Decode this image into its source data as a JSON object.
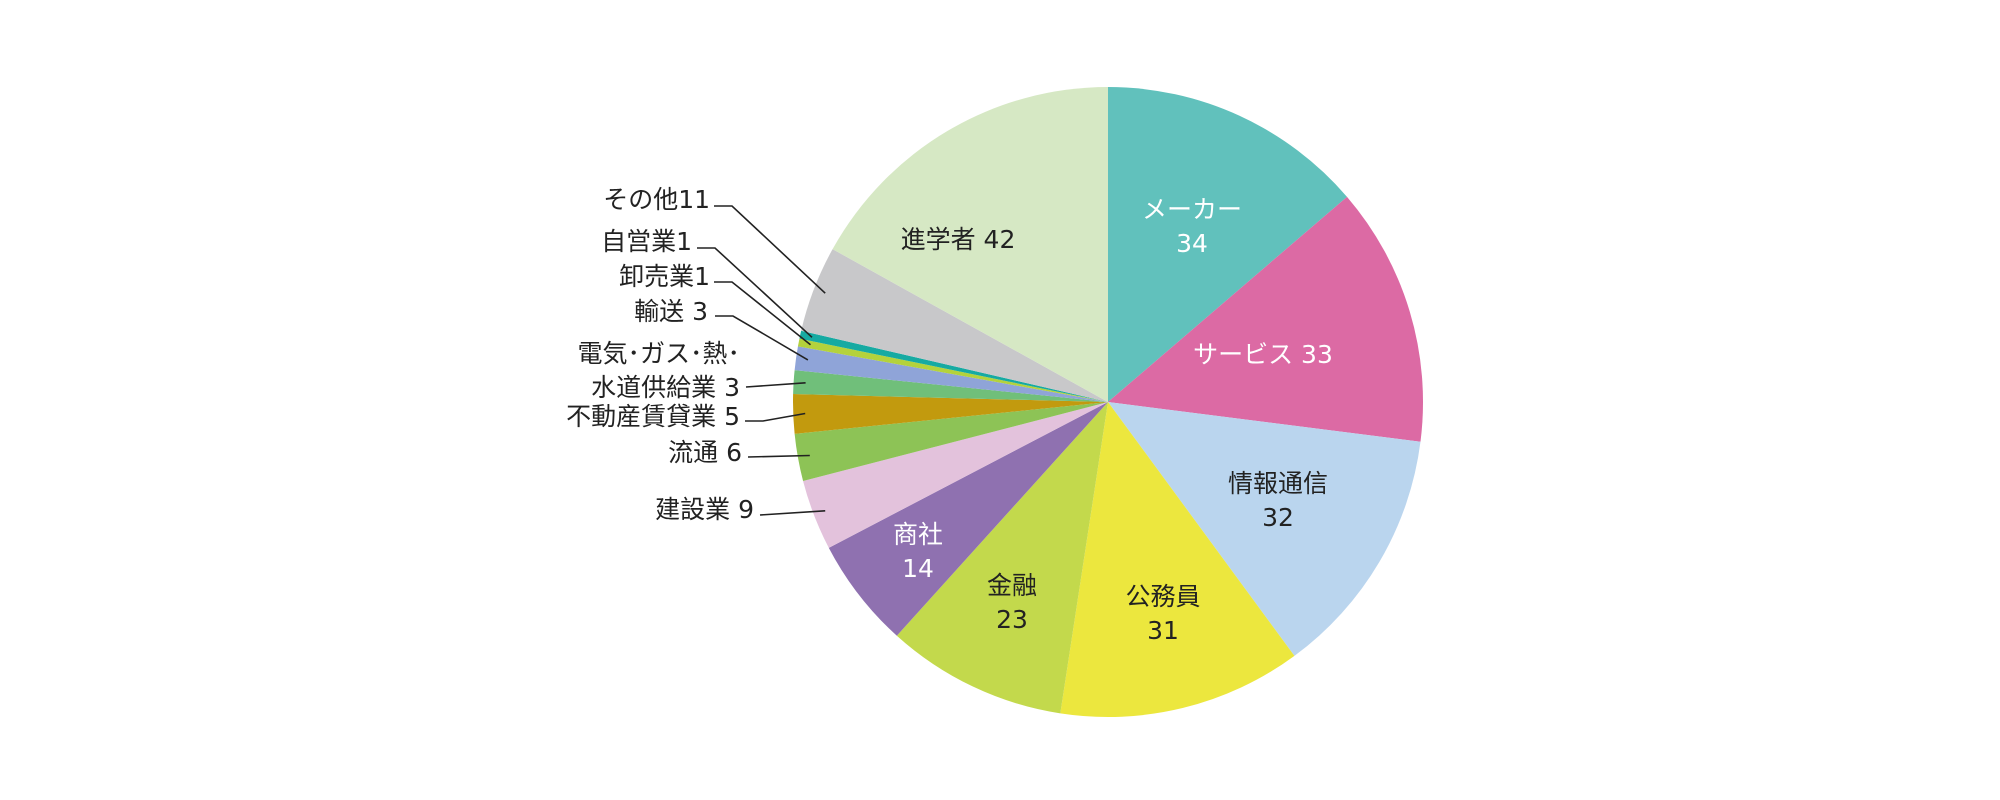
{
  "chart_data": {
    "type": "pie",
    "start": "12 o'clock",
    "direction": "clockwise",
    "slices": [
      {
        "label": "メーカー",
        "value": 34,
        "color": "#61c1bc",
        "label_style": "inside",
        "text_color": "#ffffff"
      },
      {
        "label": "サービス",
        "value": 33,
        "color": "#dc6aa4",
        "label_style": "inside",
        "text_color": "#ffffff"
      },
      {
        "label": "情報通信",
        "value": 32,
        "color": "#bad5ee",
        "label_style": "inside",
        "text_color": "#222222"
      },
      {
        "label": "公務員",
        "value": 31,
        "color": "#ece73e",
        "label_style": "inside",
        "text_color": "#222222"
      },
      {
        "label": "金融",
        "value": 23,
        "color": "#c3d94c",
        "label_style": "inside",
        "text_color": "#222222"
      },
      {
        "label": "商社",
        "value": 14,
        "color": "#8f71b0",
        "label_style": "inside",
        "text_color": "#ffffff"
      },
      {
        "label": "建設業",
        "value": 9,
        "color": "#e3c2dc",
        "label_style": "outside"
      },
      {
        "label": "流通",
        "value": 6,
        "color": "#8dc356",
        "label_style": "outside"
      },
      {
        "label": "不動産賃貸業",
        "value": 5,
        "color": "#c29a0e",
        "label_style": "outside"
      },
      {
        "label": "電気･ガス･熱･水道供給業",
        "value": 3,
        "color": "#70bf7a",
        "label_style": "outside"
      },
      {
        "label": "輸送",
        "value": 3,
        "color": "#8fa4d8",
        "label_style": "outside"
      },
      {
        "label": "卸売業",
        "value": 1,
        "color": "#b4d23c",
        "label_style": "outside"
      },
      {
        "label": "自営業",
        "value": 1,
        "color": "#16aaa2",
        "label_style": "outside"
      },
      {
        "label": "その他",
        "value": 11,
        "color": "#c8c8ca",
        "label_style": "outside"
      },
      {
        "label": "進学者",
        "value": 42,
        "color": "#d6e8c4",
        "label_style": "inside",
        "text_color": "#222222"
      }
    ],
    "labels": {
      "inside": [
        {
          "slice": 0,
          "lines": [
            "メーカー",
            "34"
          ]
        },
        {
          "slice": 1,
          "lines": [
            "サービス 33"
          ]
        },
        {
          "slice": 2,
          "lines": [
            "情報通信",
            "32"
          ]
        },
        {
          "slice": 3,
          "lines": [
            "公務員",
            "31"
          ]
        },
        {
          "slice": 4,
          "lines": [
            "金融",
            "23"
          ]
        },
        {
          "slice": 5,
          "lines": [
            "商社",
            "14"
          ]
        },
        {
          "slice": 14,
          "lines": [
            "進学者 42"
          ]
        }
      ],
      "outside": [
        {
          "slice": 13,
          "lines": [
            "その他11"
          ]
        },
        {
          "slice": 12,
          "lines": [
            "自営業1"
          ]
        },
        {
          "slice": 11,
          "lines": [
            "卸売業1"
          ]
        },
        {
          "slice": 10,
          "lines": [
            "輸送 3"
          ]
        },
        {
          "slice": 9,
          "lines": [
            "電気･ガス･熱･",
            "水道供給業 3"
          ]
        },
        {
          "slice": 8,
          "lines": [
            "不動産賃貸業 5"
          ]
        },
        {
          "slice": 7,
          "lines": [
            "流通 6"
          ]
        },
        {
          "slice": 6,
          "lines": [
            "建設業 9"
          ]
        }
      ]
    }
  }
}
